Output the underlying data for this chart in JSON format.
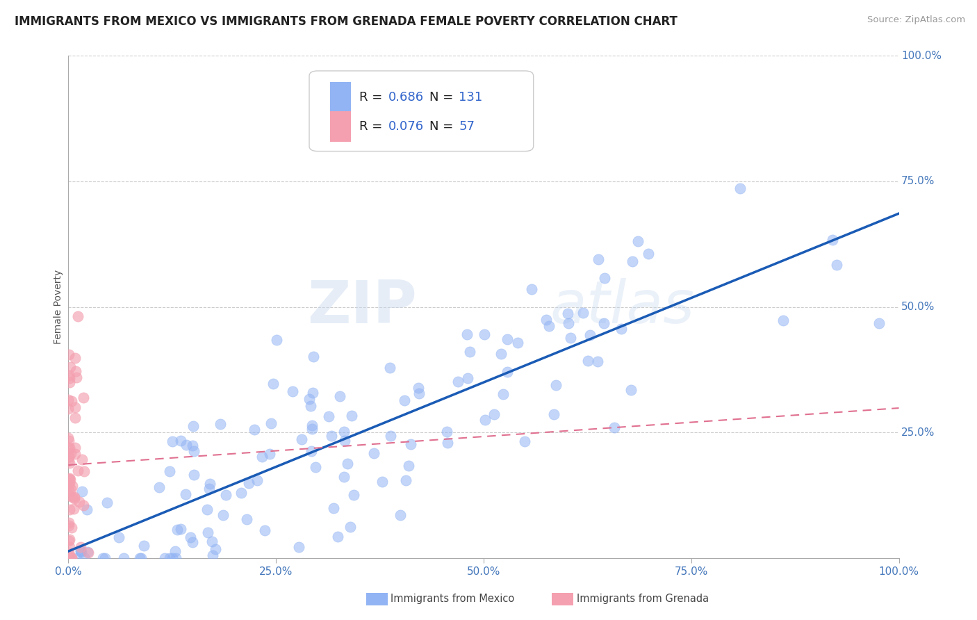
{
  "title": "IMMIGRANTS FROM MEXICO VS IMMIGRANTS FROM GRENADA FEMALE POVERTY CORRELATION CHART",
  "source": "Source: ZipAtlas.com",
  "ylabel": "Female Poverty",
  "xlim": [
    0.0,
    1.0
  ],
  "ylim": [
    0.0,
    1.0
  ],
  "xticks": [
    0.0,
    0.25,
    0.5,
    0.75,
    1.0
  ],
  "yticks": [
    0.25,
    0.5,
    0.75,
    1.0
  ],
  "xticklabels": [
    "0.0%",
    "25.0%",
    "50.0%",
    "75.0%",
    "100.0%"
  ],
  "yticklabels": [
    "25.0%",
    "50.0%",
    "75.0%",
    "100.0%"
  ],
  "mexico_color": "#92B4F4",
  "grenada_color": "#F4A0B0",
  "mexico_R": 0.686,
  "mexico_N": 131,
  "grenada_R": 0.076,
  "grenada_N": 57,
  "trend_mexico_color": "#1A5BB5",
  "trend_grenada_color": "#E07090",
  "watermark_zip": "ZIP",
  "watermark_atlas": "atlas",
  "background_color": "#FFFFFF",
  "grid_color": "#CCCCCC",
  "title_fontsize": 12,
  "axis_label_fontsize": 10,
  "tick_fontsize": 11,
  "legend_fontsize": 13,
  "tick_color": "#4477BB",
  "legend_text_color": "#222222",
  "legend_value_color": "#3366CC"
}
